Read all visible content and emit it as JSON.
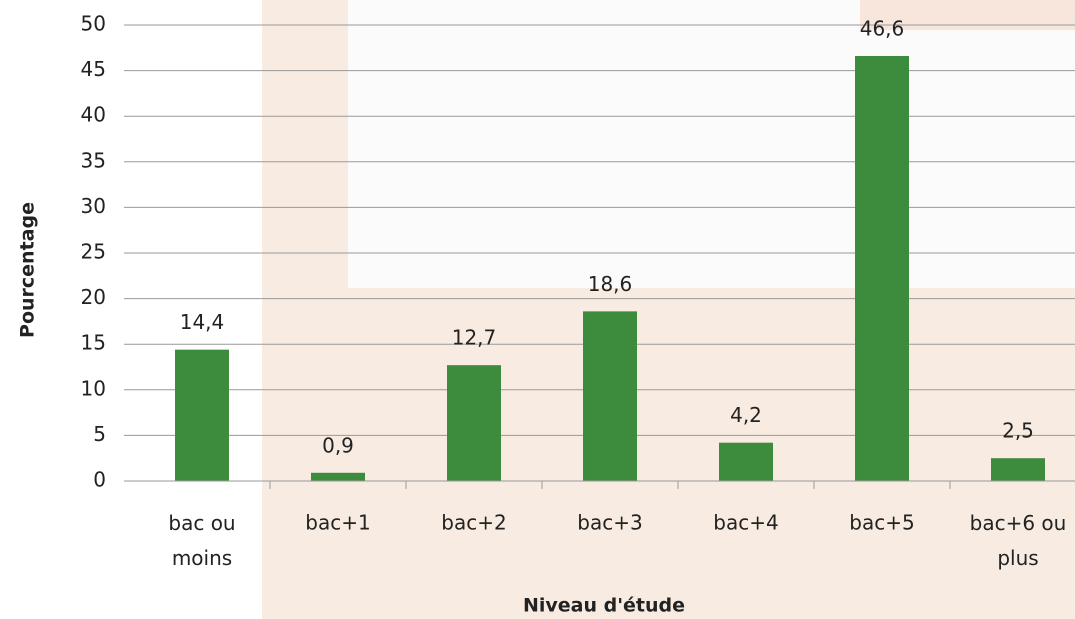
{
  "chart_data": {
    "type": "bar",
    "x_label": "Niveau d'étude",
    "y_label": "Pourcentage",
    "categories": [
      "bac ou moins",
      "bac+1",
      "bac+2",
      "bac+3",
      "bac+4",
      "bac+5",
      "bac+6 ou plus"
    ],
    "values": [
      14.4,
      0.9,
      12.7,
      18.6,
      4.2,
      46.6,
      2.5
    ],
    "value_labels": [
      "14,4",
      "0,9",
      "12,7",
      "18,6",
      "4,2",
      "46,6",
      "2,5"
    ],
    "color": "#3d8c3d",
    "ylim": [
      0,
      50
    ],
    "yticks": [
      0,
      5,
      10,
      15,
      20,
      25,
      30,
      35,
      40,
      45,
      50
    ],
    "grid": true
  }
}
